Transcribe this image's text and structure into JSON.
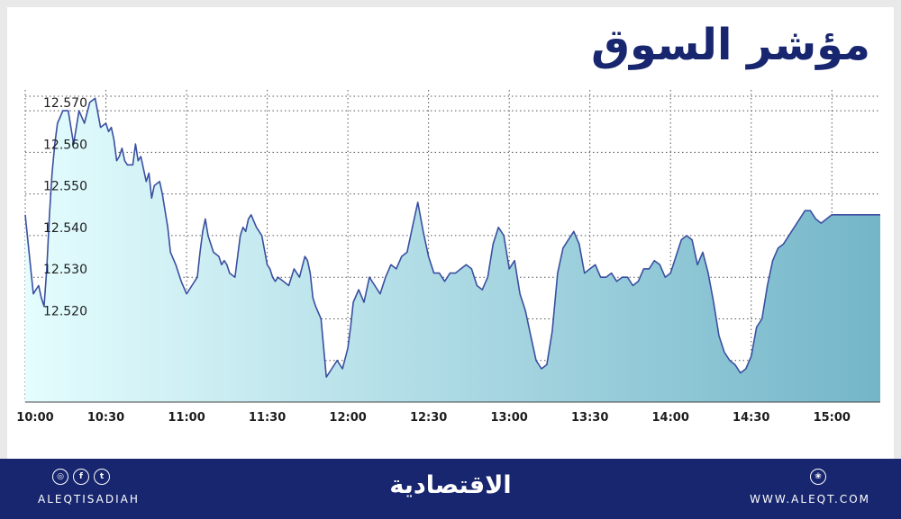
{
  "header": {
    "title": "مؤشر السوق"
  },
  "chart_data": {
    "type": "area",
    "x_ticks": [
      "10:00",
      "10:30",
      "11:00",
      "11:30",
      "12:00",
      "12:30",
      "13:00",
      "13:30",
      "14:00",
      "14:30",
      "15:00"
    ],
    "y_ticks": [
      "12.520",
      "12.530",
      "12.540",
      "12.550",
      "12.560",
      "12.570"
    ],
    "ylim": [
      12.5,
      12.575
    ],
    "x_unit": "minutes_from_10:00",
    "grid": true,
    "colors": {
      "line": "#3a4fa0",
      "fill_start": "#e4fdfe",
      "fill_end": "#74b6c9"
    },
    "series": [
      {
        "x": [
          0,
          3,
          4,
          5,
          6,
          7,
          8,
          9,
          10,
          11,
          12,
          14,
          16,
          18,
          20,
          22,
          24,
          26,
          28,
          30,
          31,
          32,
          33,
          34,
          35,
          36,
          37,
          38,
          40,
          41,
          42,
          43,
          44,
          45,
          46,
          47,
          48,
          50,
          51,
          52,
          53,
          54,
          56,
          58,
          60,
          62,
          64,
          65,
          66,
          67,
          68,
          70,
          72,
          73,
          74,
          75,
          76,
          78,
          80,
          81,
          82,
          83,
          84,
          86,
          88,
          90,
          91,
          92,
          93,
          94,
          96,
          98,
          100,
          102,
          104,
          105,
          106,
          107,
          108,
          110,
          112,
          114,
          116,
          118,
          120,
          121,
          122,
          124,
          126,
          128,
          130,
          132,
          134,
          136,
          138,
          140,
          142,
          144,
          146,
          148,
          150,
          152,
          154,
          156,
          158,
          160,
          162,
          164,
          166,
          168,
          170,
          172,
          174,
          176,
          178,
          180,
          182,
          184,
          186,
          188,
          190,
          192,
          194,
          196,
          198,
          200,
          202,
          204,
          206,
          208,
          210,
          212,
          214,
          216,
          218,
          220,
          222,
          224,
          226,
          228,
          230,
          232,
          234,
          236,
          238,
          240,
          242,
          244,
          246,
          248,
          250,
          252,
          254,
          256,
          258,
          260,
          262,
          264,
          266,
          268,
          270,
          272,
          274,
          276,
          278,
          280,
          282,
          284,
          286,
          288,
          290,
          292,
          294,
          296,
          298,
          300,
          302,
          304,
          305,
          306,
          307,
          308,
          310,
          312,
          314,
          316,
          318
        ],
        "values": [
          12.545,
          12.526,
          12.527,
          12.528,
          12.525,
          12.523,
          12.532,
          12.545,
          12.555,
          12.562,
          12.567,
          12.57,
          12.57,
          12.562,
          12.57,
          12.567,
          12.572,
          12.573,
          12.566,
          12.567,
          12.565,
          12.566,
          12.563,
          12.558,
          12.559,
          12.561,
          12.558,
          12.557,
          12.557,
          12.562,
          12.558,
          12.559,
          12.556,
          12.553,
          12.555,
          12.549,
          12.552,
          12.553,
          12.55,
          12.546,
          12.542,
          12.536,
          12.533,
          12.529,
          12.526,
          12.528,
          12.53,
          12.536,
          12.541,
          12.544,
          12.54,
          12.536,
          12.535,
          12.533,
          12.534,
          12.533,
          12.531,
          12.53,
          12.54,
          12.542,
          12.541,
          12.544,
          12.545,
          12.542,
          12.54,
          12.533,
          12.532,
          12.53,
          12.529,
          12.53,
          12.529,
          12.528,
          12.532,
          12.53,
          12.535,
          12.534,
          12.531,
          12.525,
          12.523,
          12.52,
          12.506,
          12.508,
          12.51,
          12.508,
          12.513,
          12.518,
          12.524,
          12.527,
          12.524,
          12.53,
          12.528,
          12.526,
          12.53,
          12.533,
          12.532,
          12.535,
          12.536,
          12.542,
          12.548,
          12.541,
          12.535,
          12.531,
          12.531,
          12.529,
          12.531,
          12.531,
          12.532,
          12.533,
          12.532,
          12.528,
          12.527,
          12.53,
          12.538,
          12.542,
          12.54,
          12.532,
          12.534,
          12.526,
          12.522,
          12.516,
          12.51,
          12.508,
          12.509,
          12.517,
          12.531,
          12.537,
          12.539,
          12.541,
          12.538,
          12.531,
          12.532,
          12.533,
          12.53,
          12.53,
          12.531,
          12.529,
          12.53,
          12.53,
          12.528,
          12.529,
          12.532,
          12.532,
          12.534,
          12.533,
          12.53,
          12.531,
          12.535,
          12.539,
          12.54,
          12.539,
          12.533,
          12.536,
          12.531,
          12.524,
          12.516,
          12.512,
          12.51,
          12.509,
          12.507,
          12.508,
          12.511,
          12.518,
          12.52,
          12.528,
          12.534,
          12.537,
          12.538,
          12.54,
          12.542,
          12.544,
          12.546,
          12.546,
          12.544,
          12.543,
          12.544,
          12.545,
          12.545,
          12.545,
          12.545,
          12.545,
          12.545,
          12.545,
          12.545,
          12.545,
          12.545,
          12.545,
          12.545
        ]
      }
    ]
  },
  "footer": {
    "social_icons": [
      "instagram-icon",
      "facebook-icon",
      "twitter-icon"
    ],
    "social_glyphs": [
      "◎",
      "f",
      "t"
    ],
    "handle": "ALEQTISADIAH",
    "brand": "الاقتصادية",
    "website_icon_glyph": "❀",
    "website": "WWW.ALEQT.COM"
  }
}
